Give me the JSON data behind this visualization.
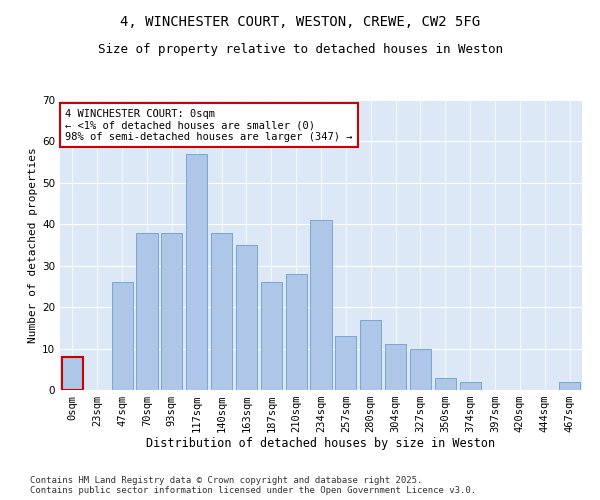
{
  "title1": "4, WINCHESTER COURT, WESTON, CREWE, CW2 5FG",
  "title2": "Size of property relative to detached houses in Weston",
  "xlabel": "Distribution of detached houses by size in Weston",
  "ylabel": "Number of detached properties",
  "categories": [
    "0sqm",
    "23sqm",
    "47sqm",
    "70sqm",
    "93sqm",
    "117sqm",
    "140sqm",
    "163sqm",
    "187sqm",
    "210sqm",
    "234sqm",
    "257sqm",
    "280sqm",
    "304sqm",
    "327sqm",
    "350sqm",
    "374sqm",
    "397sqm",
    "420sqm",
    "444sqm",
    "467sqm"
  ],
  "values": [
    8,
    0,
    26,
    38,
    38,
    57,
    38,
    35,
    26,
    28,
    41,
    13,
    17,
    11,
    10,
    3,
    2,
    0,
    0,
    0,
    2
  ],
  "bar_color": "#aec6e8",
  "bar_edge_color": "#6a9fd0",
  "highlight_bar_index": 0,
  "highlight_bar_color": "#cc0000",
  "background_color": "#dce8f5",
  "annotation_text": "4 WINCHESTER COURT: 0sqm\n← <1% of detached houses are smaller (0)\n98% of semi-detached houses are larger (347) →",
  "annotation_box_color": "#ffffff",
  "annotation_box_edge_color": "#cc0000",
  "ylim": [
    0,
    70
  ],
  "yticks": [
    0,
    10,
    20,
    30,
    40,
    50,
    60,
    70
  ],
  "footer": "Contains HM Land Registry data © Crown copyright and database right 2025.\nContains public sector information licensed under the Open Government Licence v3.0.",
  "title1_fontsize": 10,
  "title2_fontsize": 9,
  "xlabel_fontsize": 8.5,
  "ylabel_fontsize": 8,
  "tick_fontsize": 7.5,
  "annotation_fontsize": 7.5,
  "footer_fontsize": 6.5
}
